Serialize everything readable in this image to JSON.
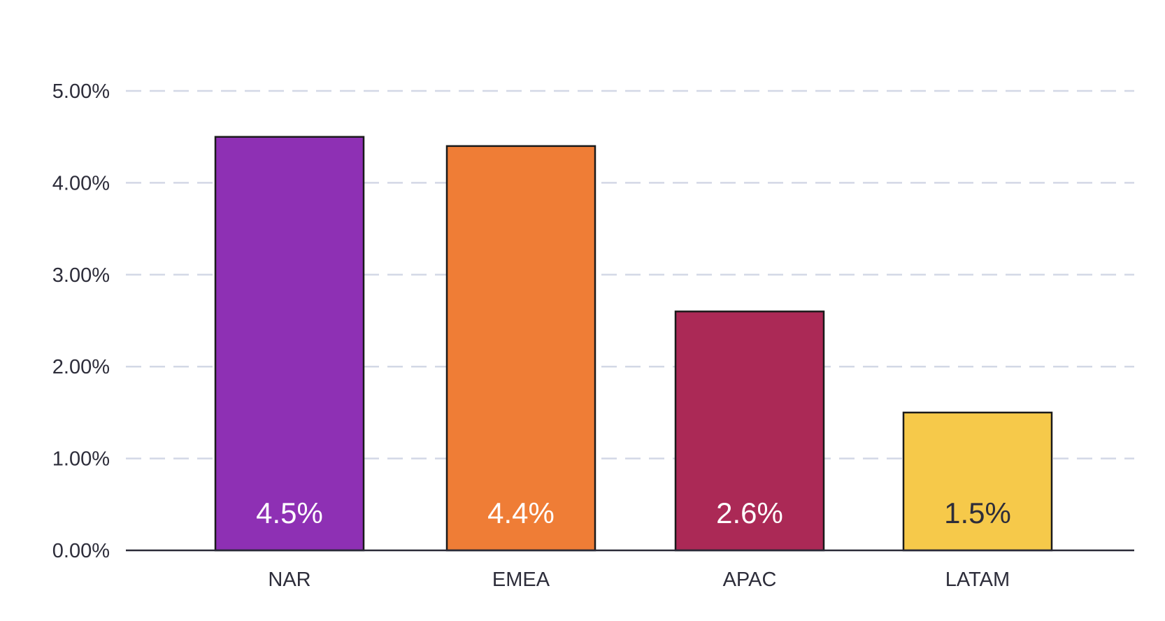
{
  "chart_data": {
    "type": "bar",
    "categories": [
      "NAR",
      "EMEA",
      "APAC",
      "LATAM"
    ],
    "values": [
      4.5,
      4.4,
      2.6,
      1.5
    ],
    "data_labels": [
      "4.5%",
      "4.4%",
      "2.6%",
      "1.5%"
    ],
    "bar_colors": [
      "#8e30b4",
      "#ef7d36",
      "#ab2956",
      "#f6c94a"
    ],
    "label_colors": [
      "#ffffff",
      "#ffffff",
      "#ffffff",
      "#2d2d3a"
    ],
    "ylim": [
      0,
      5
    ],
    "yticks": [
      0,
      1,
      2,
      3,
      4,
      5
    ],
    "ytick_labels": [
      "0.00%",
      "1.00%",
      "2.00%",
      "3.00%",
      "4.00%",
      "5.00%"
    ],
    "grid": true,
    "title": "",
    "xlabel": "",
    "ylabel": ""
  }
}
